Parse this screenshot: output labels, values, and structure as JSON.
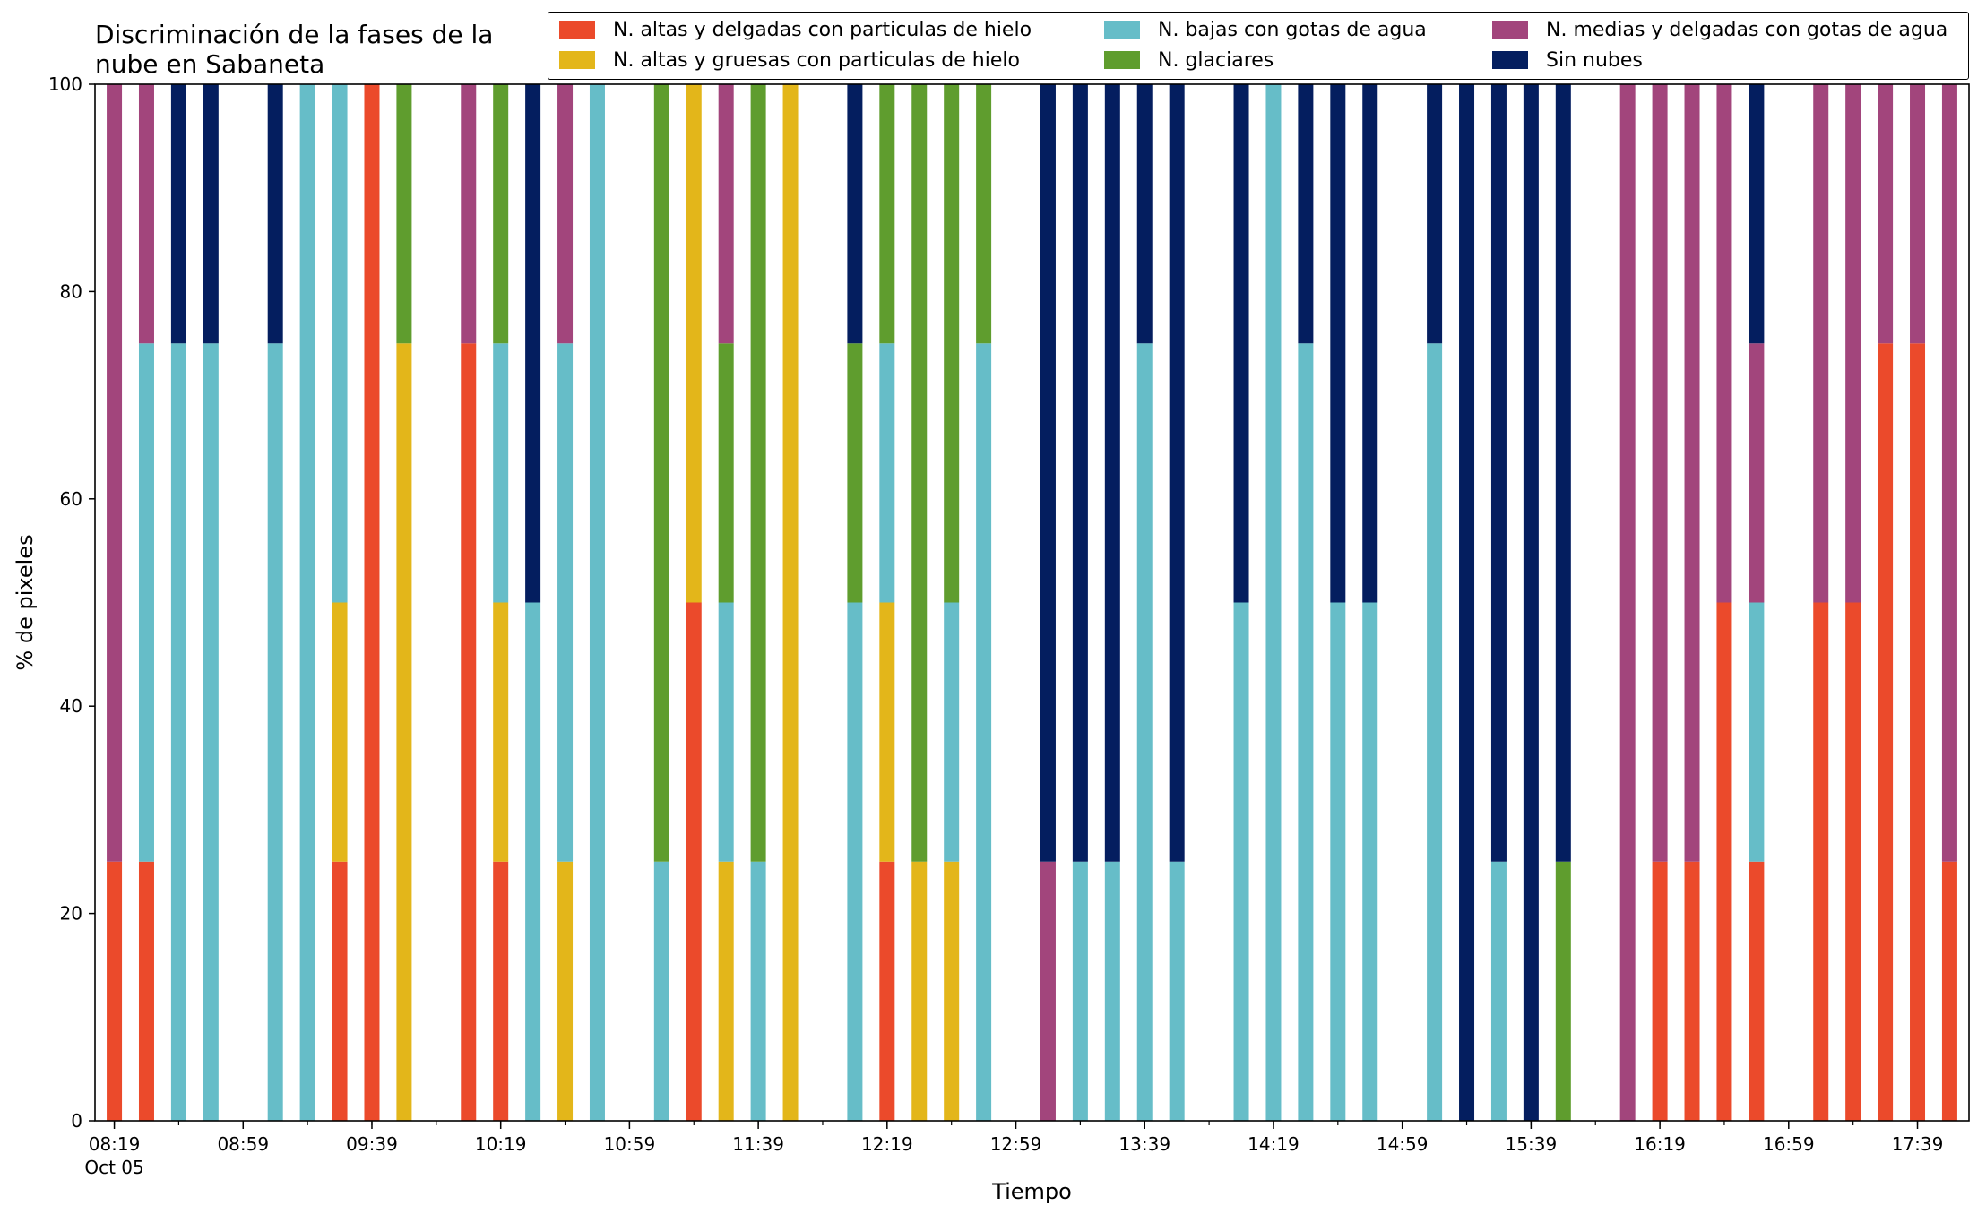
{
  "chart_data": {
    "type": "bar",
    "stacked": true,
    "title": "Discriminación de la fases de la nube en Sabaneta",
    "xlabel": "Tiempo",
    "ylabel": "% de pixeles",
    "ylim": [
      0,
      100
    ],
    "yticks": [
      0,
      20,
      40,
      60,
      80,
      100
    ],
    "grid": false,
    "legend_placement": "top-right",
    "xticks": [
      {
        "time": "08:19",
        "label": "08:19",
        "sublabel": "Oct 05"
      },
      {
        "time": "08:59",
        "label": "08:59"
      },
      {
        "time": "09:39",
        "label": "09:39"
      },
      {
        "time": "10:19",
        "label": "10:19"
      },
      {
        "time": "10:59",
        "label": "10:59"
      },
      {
        "time": "11:39",
        "label": "11:39"
      },
      {
        "time": "12:19",
        "label": "12:19"
      },
      {
        "time": "12:59",
        "label": "12:59"
      },
      {
        "time": "13:39",
        "label": "13:39"
      },
      {
        "time": "14:19",
        "label": "14:19"
      },
      {
        "time": "14:59",
        "label": "14:59"
      },
      {
        "time": "15:39",
        "label": "15:39"
      },
      {
        "time": "16:19",
        "label": "16:19"
      },
      {
        "time": "16:59",
        "label": "16:59"
      },
      {
        "time": "17:39",
        "label": "17:39"
      }
    ],
    "series_order": [
      "hielo_delgadas",
      "hielo_gruesas",
      "bajas_agua",
      "glaciares",
      "medias_agua",
      "sin_nubes"
    ],
    "series": [
      {
        "key": "hielo_delgadas",
        "name": "N. altas y delgadas con particulas de hielo",
        "color": "#EB4A2B"
      },
      {
        "key": "hielo_gruesas",
        "name": "N. altas y gruesas con particulas de hielo",
        "color": "#E3B61A"
      },
      {
        "key": "bajas_agua",
        "name": "N. bajas con gotas de agua",
        "color": "#66BDC8"
      },
      {
        "key": "glaciares",
        "name": "N. glaciares",
        "color": "#5F9D2E"
      },
      {
        "key": "medias_agua",
        "name": "N. medias y delgadas con gotas de agua",
        "color": "#A2457C"
      },
      {
        "key": "sin_nubes",
        "name": "Sin nubes",
        "color": "#041E5F"
      }
    ],
    "bars": [
      {
        "time": "08:19",
        "hielo_delgadas": 25,
        "medias_agua": 75
      },
      {
        "time": "08:29",
        "hielo_delgadas": 25,
        "bajas_agua": 50,
        "medias_agua": 25
      },
      {
        "time": "08:39",
        "bajas_agua": 75,
        "sin_nubes": 25
      },
      {
        "time": "08:49",
        "bajas_agua": 75,
        "sin_nubes": 25
      },
      {
        "time": "09:09",
        "bajas_agua": 75,
        "sin_nubes": 25
      },
      {
        "time": "09:19",
        "bajas_agua": 100
      },
      {
        "time": "09:29",
        "hielo_delgadas": 25,
        "hielo_gruesas": 25,
        "bajas_agua": 50
      },
      {
        "time": "09:39",
        "hielo_delgadas": 100
      },
      {
        "time": "09:49",
        "hielo_gruesas": 75,
        "glaciares": 25
      },
      {
        "time": "10:09",
        "hielo_delgadas": 75,
        "medias_agua": 25
      },
      {
        "time": "10:19",
        "hielo_delgadas": 25,
        "hielo_gruesas": 25,
        "bajas_agua": 25,
        "glaciares": 25
      },
      {
        "time": "10:29",
        "bajas_agua": 50,
        "sin_nubes": 50
      },
      {
        "time": "10:39",
        "hielo_gruesas": 25,
        "bajas_agua": 50,
        "medias_agua": 25
      },
      {
        "time": "10:49",
        "bajas_agua": 100
      },
      {
        "time": "11:09",
        "bajas_agua": 25,
        "glaciares": 75
      },
      {
        "time": "11:19",
        "hielo_delgadas": 50,
        "hielo_gruesas": 50
      },
      {
        "time": "11:29",
        "hielo_gruesas": 25,
        "bajas_agua": 25,
        "glaciares": 25,
        "medias_agua": 25
      },
      {
        "time": "11:39",
        "bajas_agua": 25,
        "glaciares": 75
      },
      {
        "time": "11:49",
        "hielo_gruesas": 100
      },
      {
        "time": "12:09",
        "bajas_agua": 50,
        "glaciares": 25,
        "sin_nubes": 25
      },
      {
        "time": "12:19",
        "hielo_delgadas": 25,
        "hielo_gruesas": 25,
        "bajas_agua": 25,
        "glaciares": 25
      },
      {
        "time": "12:29",
        "hielo_gruesas": 25,
        "glaciares": 75
      },
      {
        "time": "12:39",
        "hielo_gruesas": 25,
        "bajas_agua": 25,
        "glaciares": 50
      },
      {
        "time": "12:49",
        "bajas_agua": 75,
        "glaciares": 25
      },
      {
        "time": "13:09",
        "medias_agua": 25,
        "sin_nubes": 75
      },
      {
        "time": "13:19",
        "bajas_agua": 25,
        "sin_nubes": 75
      },
      {
        "time": "13:29",
        "bajas_agua": 25,
        "sin_nubes": 75
      },
      {
        "time": "13:39",
        "bajas_agua": 75,
        "sin_nubes": 25
      },
      {
        "time": "13:49",
        "bajas_agua": 25,
        "sin_nubes": 75
      },
      {
        "time": "14:09",
        "bajas_agua": 50,
        "sin_nubes": 50
      },
      {
        "time": "14:19",
        "bajas_agua": 100
      },
      {
        "time": "14:29",
        "bajas_agua": 75,
        "sin_nubes": 25
      },
      {
        "time": "14:39",
        "bajas_agua": 50,
        "sin_nubes": 50
      },
      {
        "time": "14:49",
        "bajas_agua": 50,
        "sin_nubes": 50
      },
      {
        "time": "15:09",
        "bajas_agua": 75,
        "sin_nubes": 25
      },
      {
        "time": "15:19",
        "sin_nubes": 100
      },
      {
        "time": "15:29",
        "bajas_agua": 25,
        "sin_nubes": 75
      },
      {
        "time": "15:39",
        "sin_nubes": 100
      },
      {
        "time": "15:49",
        "glaciares": 25,
        "sin_nubes": 75
      },
      {
        "time": "16:09",
        "medias_agua": 100
      },
      {
        "time": "16:19",
        "hielo_delgadas": 25,
        "medias_agua": 75
      },
      {
        "time": "16:29",
        "hielo_delgadas": 25,
        "medias_agua": 75
      },
      {
        "time": "16:39",
        "hielo_delgadas": 50,
        "medias_agua": 50
      },
      {
        "time": "16:49",
        "hielo_delgadas": 25,
        "bajas_agua": 25,
        "medias_agua": 25,
        "sin_nubes": 25
      },
      {
        "time": "17:09",
        "hielo_delgadas": 50,
        "medias_agua": 50
      },
      {
        "time": "17:19",
        "hielo_delgadas": 50,
        "medias_agua": 50
      },
      {
        "time": "17:29",
        "hielo_delgadas": 75,
        "medias_agua": 25
      },
      {
        "time": "17:39",
        "hielo_delgadas": 75,
        "medias_agua": 25
      },
      {
        "time": "17:49",
        "hielo_delgadas": 25,
        "medias_agua": 75
      }
    ]
  }
}
